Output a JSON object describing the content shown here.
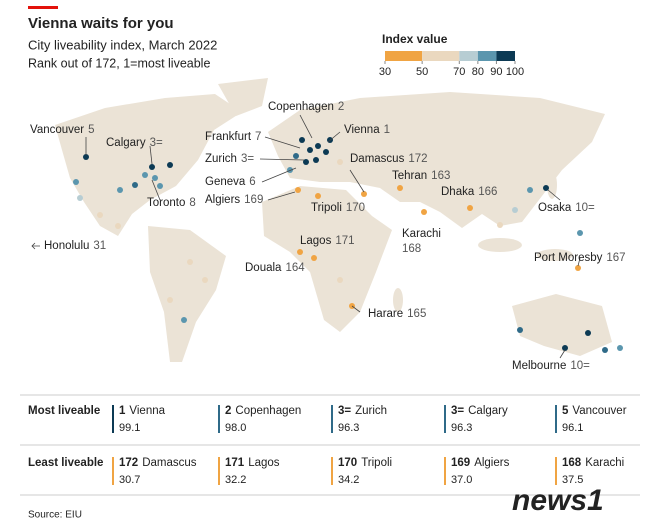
{
  "header": {
    "title": "Vienna waits for you",
    "subtitle": "City liveability index, March 2022",
    "note": "Rank out of 172, 1=most liveable"
  },
  "legend": {
    "title": "Index value",
    "ticks": [
      30,
      50,
      70,
      80,
      90,
      100
    ],
    "bands": [
      {
        "from": 30,
        "to": 50,
        "color": "#f0a443"
      },
      {
        "from": 50,
        "to": 70,
        "color": "#ead8bf"
      },
      {
        "from": 70,
        "to": 80,
        "color": "#b7cdd3"
      },
      {
        "from": 80,
        "to": 90,
        "color": "#5b96ae"
      },
      {
        "from": 90,
        "to": 100,
        "color": "#0c3a54"
      }
    ]
  },
  "map_labels": [
    {
      "city": "Vancouver",
      "rank": "5"
    },
    {
      "city": "Calgary",
      "rank": "3="
    },
    {
      "city": "Toronto",
      "rank": "8"
    },
    {
      "city": "Copenhagen",
      "rank": "2"
    },
    {
      "city": "Vienna",
      "rank": "1"
    },
    {
      "city": "Frankfurt",
      "rank": "7"
    },
    {
      "city": "Zurich",
      "rank": "3="
    },
    {
      "city": "Damascus",
      "rank": "172"
    },
    {
      "city": "Geneva",
      "rank": "6"
    },
    {
      "city": "Tehran",
      "rank": "163"
    },
    {
      "city": "Algiers",
      "rank": "169"
    },
    {
      "city": "Tripoli",
      "rank": "170"
    },
    {
      "city": "Dhaka",
      "rank": "166"
    },
    {
      "city": "Osaka",
      "rank": "10="
    },
    {
      "city": "Karachi",
      "rank": "168"
    },
    {
      "city": "Honolulu",
      "rank": "31"
    },
    {
      "city": "Lagos",
      "rank": "171"
    },
    {
      "city": "Douala",
      "rank": "164"
    },
    {
      "city": "Port Moresby",
      "rank": "167"
    },
    {
      "city": "Harare",
      "rank": "165"
    },
    {
      "city": "Melbourne",
      "rank": "10="
    }
  ],
  "tables": [
    {
      "label": "Most liveable",
      "entries": [
        {
          "rank": "1",
          "city": "Vienna",
          "value": "99.1",
          "color": "#0c3a54"
        },
        {
          "rank": "2",
          "city": "Copenhagen",
          "value": "98.0",
          "color": "#2f6a88"
        },
        {
          "rank": "3=",
          "city": "Zurich",
          "value": "96.3",
          "color": "#2f6a88"
        },
        {
          "rank": "3=",
          "city": "Calgary",
          "value": "96.3",
          "color": "#2f6a88"
        },
        {
          "rank": "5",
          "city": "Vancouver",
          "value": "96.1",
          "color": "#2f6a88"
        }
      ]
    },
    {
      "label": "Least liveable",
      "entries": [
        {
          "rank": "172",
          "city": "Damascus",
          "value": "30.7",
          "color": "#f0a443"
        },
        {
          "rank": "171",
          "city": "Lagos",
          "value": "32.2",
          "color": "#f0a443"
        },
        {
          "rank": "170",
          "city": "Tripoli",
          "value": "34.2",
          "color": "#f0a443"
        },
        {
          "rank": "169",
          "city": "Algiers",
          "value": "37.0",
          "color": "#f0a443"
        },
        {
          "rank": "168",
          "city": "Karachi",
          "value": "37.5",
          "color": "#f0a443"
        }
      ]
    }
  ],
  "source": "Source: EIU",
  "watermark": "news1"
}
